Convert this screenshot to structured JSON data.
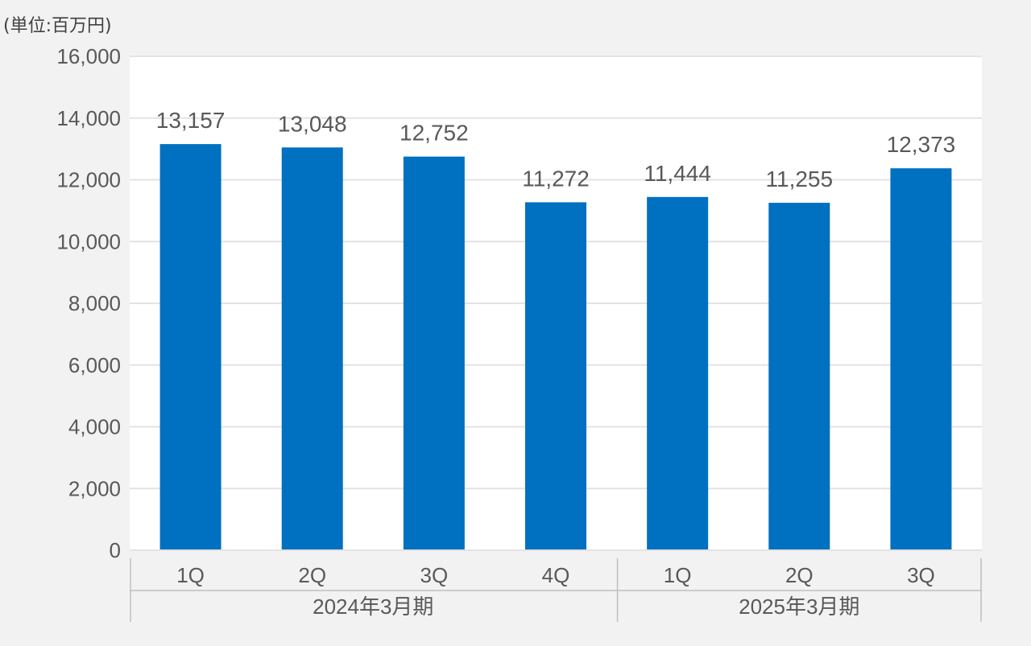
{
  "chart_data": {
    "type": "bar",
    "unit_label": "(単位:百万円)",
    "categories": [
      "1Q",
      "2Q",
      "3Q",
      "4Q",
      "1Q",
      "2Q",
      "3Q"
    ],
    "values": [
      13157,
      13048,
      12752,
      11272,
      11444,
      11255,
      12373
    ],
    "data_labels": [
      "13,157",
      "13,048",
      "12,752",
      "11,272",
      "11,444",
      "11,255",
      "12,373"
    ],
    "groups": [
      {
        "label": "2024年3月期",
        "count": 4
      },
      {
        "label": "2025年3月期",
        "count": 3
      }
    ],
    "y_ticks": [
      0,
      2000,
      4000,
      6000,
      8000,
      10000,
      12000,
      14000,
      16000
    ],
    "y_tick_labels": [
      "0",
      "2,000",
      "4,000",
      "6,000",
      "8,000",
      "10,000",
      "12,000",
      "14,000",
      "16,000"
    ],
    "ylim": [
      0,
      16000
    ],
    "grid": true,
    "legend": "none",
    "colors": {
      "bar": "#0070c0",
      "plot_background": "#ffffff",
      "page_background": "#f2f2f2",
      "grid": "#e3e3e3",
      "separator": "#bfbfbf",
      "text": "#595959"
    }
  }
}
